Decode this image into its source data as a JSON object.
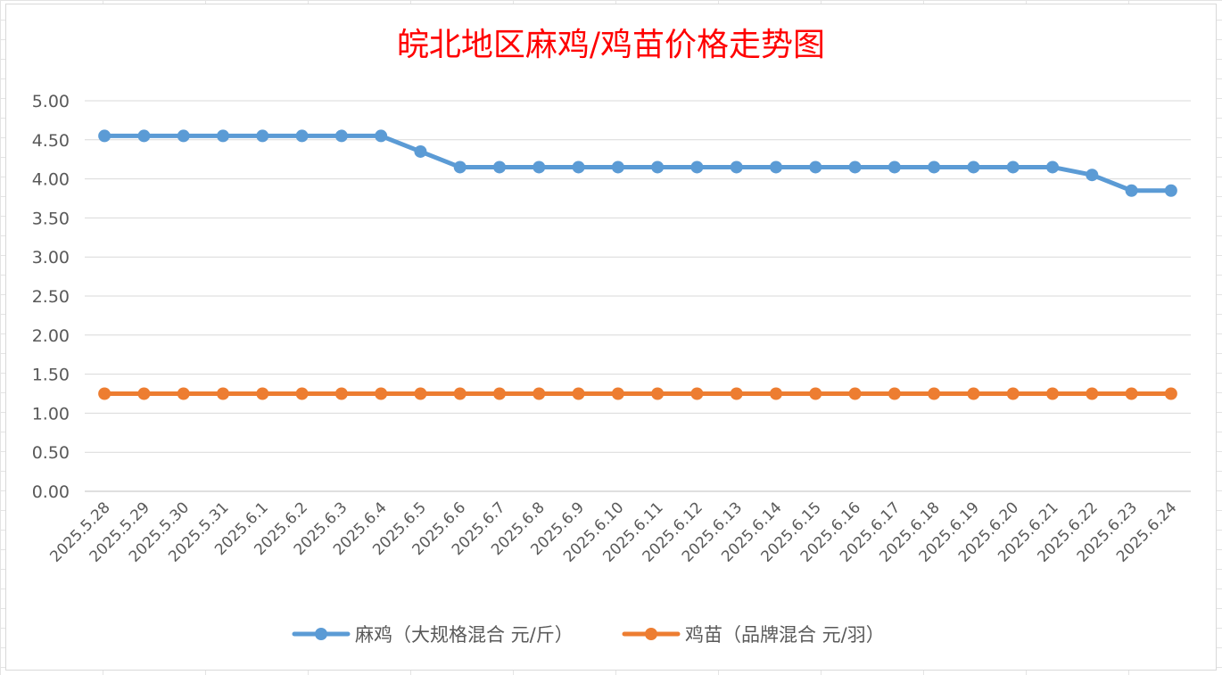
{
  "chart_data": {
    "type": "line",
    "title": "皖北地区麻鸡/鸡苗价格走势图",
    "categories": [
      "2025.5.28",
      "2025.5.29",
      "2025.5.30",
      "2025.5.31",
      "2025.6.1",
      "2025.6.2",
      "2025.6.3",
      "2025.6.4",
      "2025.6.5",
      "2025.6.6",
      "2025.6.7",
      "2025.6.8",
      "2025.6.9",
      "2025.6.10",
      "2025.6.11",
      "2025.6.12",
      "2025.6.13",
      "2025.6.14",
      "2025.6.15",
      "2025.6.16",
      "2025.6.17",
      "2025.6.18",
      "2025.6.19",
      "2025.6.20",
      "2025.6.21",
      "2025.6.22",
      "2025.6.23",
      "2025.6.24"
    ],
    "y_ticks": [
      "0.00",
      "0.50",
      "1.00",
      "1.50",
      "2.00",
      "2.50",
      "3.00",
      "3.50",
      "4.00",
      "4.50",
      "5.00"
    ],
    "ylim": [
      0,
      5
    ],
    "grid": true,
    "legend_position": "bottom",
    "series": [
      {
        "name": "麻鸡（大规格混合 元/斤）",
        "color": "#5b9bd5",
        "values": [
          4.55,
          4.55,
          4.55,
          4.55,
          4.55,
          4.55,
          4.55,
          4.55,
          4.35,
          4.15,
          4.15,
          4.15,
          4.15,
          4.15,
          4.15,
          4.15,
          4.15,
          4.15,
          4.15,
          4.15,
          4.15,
          4.15,
          4.15,
          4.15,
          4.15,
          4.05,
          3.85,
          3.85
        ]
      },
      {
        "name": "鸡苗（品牌混合 元/羽）",
        "color": "#ed7d31",
        "values": [
          1.25,
          1.25,
          1.25,
          1.25,
          1.25,
          1.25,
          1.25,
          1.25,
          1.25,
          1.25,
          1.25,
          1.25,
          1.25,
          1.25,
          1.25,
          1.25,
          1.25,
          1.25,
          1.25,
          1.25,
          1.25,
          1.25,
          1.25,
          1.25,
          1.25,
          1.25,
          1.25,
          1.25
        ]
      }
    ]
  }
}
